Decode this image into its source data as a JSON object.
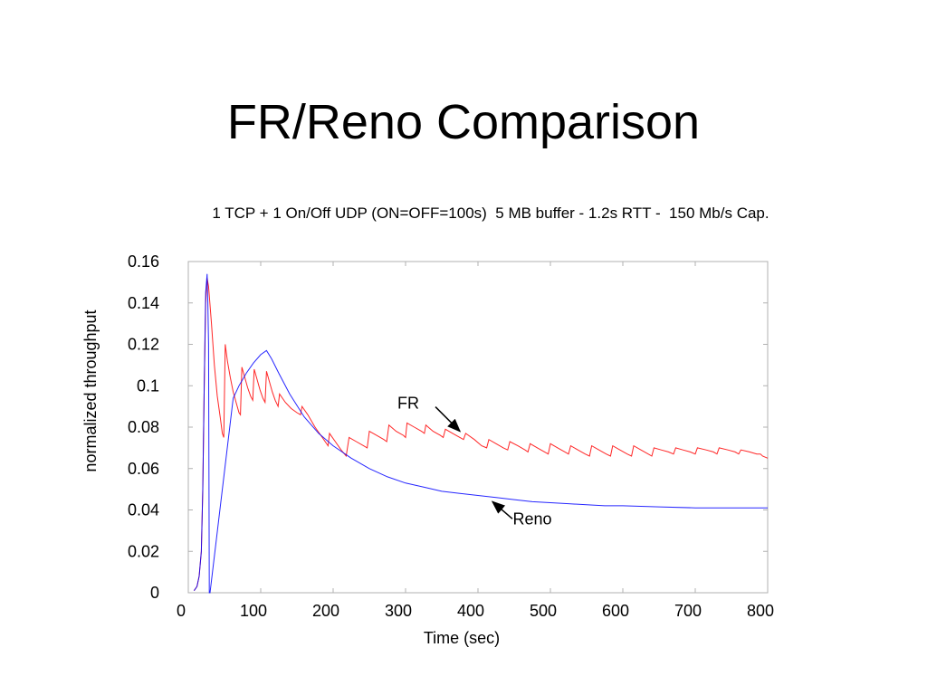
{
  "slide": {
    "title": "FR/Reno Comparison",
    "subtitle": "1 TCP + 1 On/Off UDP (ON=OFF=100s)  5 MB buffer - 1.2s RTT -  150 Mb/s Cap."
  },
  "chart_data": {
    "type": "line",
    "title": "1 TCP + 1 On/Off UDP (ON=OFF=100s)  5 MB buffer - 1.2s RTT -  150 Mb/s Cap.",
    "xlabel": "Time (sec)",
    "ylabel": "normalized throughput",
    "xlim": [
      0,
      800
    ],
    "ylim": [
      0,
      0.16
    ],
    "x_ticks": [
      "0",
      "100",
      "200",
      "300",
      "400",
      "500",
      "600",
      "700",
      "800"
    ],
    "y_ticks": [
      "0",
      "0.02",
      "0.04",
      "0.06",
      "0.08",
      "0.1",
      "0.12",
      "0.14",
      "0.16"
    ],
    "grid": false,
    "series": [
      {
        "name": "FR",
        "color": "#ff0000",
        "points": [
          [
            8,
            0.001
          ],
          [
            12,
            0.003
          ],
          [
            15,
            0.008
          ],
          [
            18,
            0.02
          ],
          [
            20,
            0.05
          ],
          [
            22,
            0.1
          ],
          [
            24,
            0.14
          ],
          [
            26,
            0.152
          ],
          [
            28,
            0.148
          ],
          [
            32,
            0.13
          ],
          [
            36,
            0.11
          ],
          [
            40,
            0.095
          ],
          [
            44,
            0.085
          ],
          [
            47,
            0.077
          ],
          [
            49,
            0.075
          ],
          [
            51,
            0.12
          ],
          [
            54,
            0.112
          ],
          [
            58,
            0.104
          ],
          [
            62,
            0.097
          ],
          [
            66,
            0.092
          ],
          [
            70,
            0.087
          ],
          [
            72,
            0.086
          ],
          [
            74,
            0.109
          ],
          [
            78,
            0.104
          ],
          [
            82,
            0.099
          ],
          [
            86,
            0.095
          ],
          [
            89,
            0.093
          ],
          [
            91,
            0.108
          ],
          [
            95,
            0.103
          ],
          [
            99,
            0.098
          ],
          [
            103,
            0.094
          ],
          [
            106,
            0.092
          ],
          [
            108,
            0.107
          ],
          [
            112,
            0.102
          ],
          [
            116,
            0.097
          ],
          [
            120,
            0.093
          ],
          [
            124,
            0.09
          ],
          [
            126,
            0.096
          ],
          [
            134,
            0.092
          ],
          [
            142,
            0.089
          ],
          [
            150,
            0.087
          ],
          [
            155,
            0.086
          ],
          [
            157,
            0.09
          ],
          [
            165,
            0.086
          ],
          [
            175,
            0.08
          ],
          [
            185,
            0.075
          ],
          [
            193,
            0.071
          ],
          [
            195,
            0.077
          ],
          [
            203,
            0.073
          ],
          [
            211,
            0.069
          ],
          [
            218,
            0.066
          ],
          [
            222,
            0.075
          ],
          [
            232,
            0.073
          ],
          [
            242,
            0.071
          ],
          [
            247,
            0.07
          ],
          [
            250,
            0.078
          ],
          [
            260,
            0.076
          ],
          [
            270,
            0.074
          ],
          [
            274,
            0.073
          ],
          [
            277,
            0.081
          ],
          [
            287,
            0.078
          ],
          [
            297,
            0.076
          ],
          [
            300,
            0.075
          ],
          [
            302,
            0.082
          ],
          [
            312,
            0.08
          ],
          [
            322,
            0.078
          ],
          [
            326,
            0.077
          ],
          [
            328,
            0.081
          ],
          [
            338,
            0.078
          ],
          [
            348,
            0.076
          ],
          [
            352,
            0.075
          ],
          [
            355,
            0.079
          ],
          [
            365,
            0.077
          ],
          [
            375,
            0.075
          ],
          [
            380,
            0.074
          ],
          [
            383,
            0.077
          ],
          [
            395,
            0.074
          ],
          [
            405,
            0.071
          ],
          [
            412,
            0.07
          ],
          [
            415,
            0.074
          ],
          [
            425,
            0.072
          ],
          [
            435,
            0.07
          ],
          [
            441,
            0.069
          ],
          [
            444,
            0.073
          ],
          [
            455,
            0.071
          ],
          [
            465,
            0.069
          ],
          [
            469,
            0.068
          ],
          [
            472,
            0.072
          ],
          [
            482,
            0.07
          ],
          [
            492,
            0.068
          ],
          [
            497,
            0.067
          ],
          [
            500,
            0.072
          ],
          [
            510,
            0.07
          ],
          [
            520,
            0.068
          ],
          [
            525,
            0.067
          ],
          [
            528,
            0.071
          ],
          [
            538,
            0.069
          ],
          [
            548,
            0.067
          ],
          [
            554,
            0.066
          ],
          [
            557,
            0.071
          ],
          [
            567,
            0.069
          ],
          [
            577,
            0.067
          ],
          [
            583,
            0.066
          ],
          [
            586,
            0.071
          ],
          [
            596,
            0.069
          ],
          [
            606,
            0.067
          ],
          [
            612,
            0.066
          ],
          [
            615,
            0.071
          ],
          [
            625,
            0.069
          ],
          [
            635,
            0.067
          ],
          [
            640,
            0.066
          ],
          [
            643,
            0.07
          ],
          [
            653,
            0.069
          ],
          [
            663,
            0.068
          ],
          [
            670,
            0.067
          ],
          [
            673,
            0.07
          ],
          [
            683,
            0.069
          ],
          [
            693,
            0.068
          ],
          [
            700,
            0.067
          ],
          [
            703,
            0.07
          ],
          [
            715,
            0.069
          ],
          [
            725,
            0.068
          ],
          [
            730,
            0.067
          ],
          [
            733,
            0.07
          ],
          [
            745,
            0.069
          ],
          [
            755,
            0.068
          ],
          [
            760,
            0.067
          ],
          [
            763,
            0.069
          ],
          [
            775,
            0.068
          ],
          [
            785,
            0.067
          ],
          [
            790,
            0.067
          ],
          [
            793,
            0.066
          ],
          [
            800,
            0.065
          ]
        ]
      },
      {
        "name": "Reno",
        "color": "#0000ff",
        "points": [
          [
            8,
            0.001
          ],
          [
            12,
            0.003
          ],
          [
            15,
            0.008
          ],
          [
            18,
            0.02
          ],
          [
            20,
            0.05
          ],
          [
            22,
            0.1
          ],
          [
            24,
            0.145
          ],
          [
            26,
            0.154
          ],
          [
            27,
            0.14
          ],
          [
            28,
            0.12
          ],
          [
            29,
            0.0
          ],
          [
            30,
            0.0
          ],
          [
            62,
            0.094
          ],
          [
            70,
            0.1
          ],
          [
            80,
            0.106
          ],
          [
            90,
            0.111
          ],
          [
            100,
            0.115
          ],
          [
            108,
            0.117
          ],
          [
            115,
            0.113
          ],
          [
            125,
            0.106
          ],
          [
            140,
            0.096
          ],
          [
            160,
            0.085
          ],
          [
            180,
            0.077
          ],
          [
            200,
            0.071
          ],
          [
            225,
            0.065
          ],
          [
            250,
            0.06
          ],
          [
            275,
            0.056
          ],
          [
            300,
            0.053
          ],
          [
            325,
            0.051
          ],
          [
            350,
            0.049
          ],
          [
            375,
            0.048
          ],
          [
            400,
            0.047
          ],
          [
            425,
            0.046
          ],
          [
            450,
            0.045
          ],
          [
            475,
            0.044
          ],
          [
            500,
            0.0435
          ],
          [
            525,
            0.043
          ],
          [
            550,
            0.0425
          ],
          [
            575,
            0.042
          ],
          [
            600,
            0.042
          ],
          [
            650,
            0.0415
          ],
          [
            700,
            0.041
          ],
          [
            750,
            0.041
          ],
          [
            800,
            0.041
          ]
        ]
      }
    ],
    "annotations": [
      {
        "text": "FR",
        "series": "FR",
        "arrow_to": [
          375,
          0.078
        ]
      },
      {
        "text": "Reno",
        "series": "Reno",
        "arrow_to": [
          420,
          0.044
        ]
      }
    ]
  }
}
